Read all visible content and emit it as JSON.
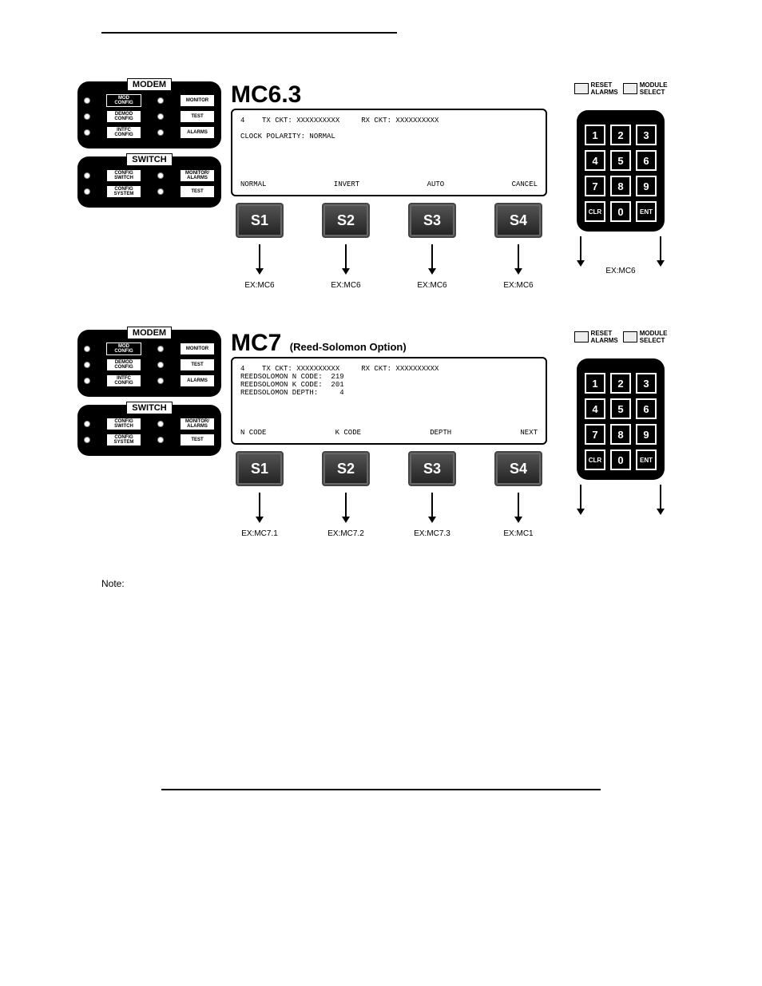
{
  "colors": {
    "bg": "#ffffff",
    "ink": "#000000",
    "panel_bg": "#000000",
    "panel_fg": "#ffffff",
    "lcd_border": "#000000"
  },
  "d1": {
    "title": "MC6.3",
    "subtitle": "",
    "lcd_top": "4    TX CKT: XXXXXXXXXX     RX CKT: XXXXXXXXXX\n\nCLOCK POLARITY: NORMAL",
    "lcd_bottom": [
      "NORMAL",
      "INVERT",
      "AUTO",
      "CANCEL"
    ],
    "soft": [
      "S1",
      "S2",
      "S3",
      "S4"
    ],
    "ex": [
      "EX:MC6",
      "EX:MC6",
      "EX:MC6",
      "EX:MC6"
    ],
    "kp_ex": "EX:MC6",
    "top_btns": [
      "RESET\nALARMS",
      "MODULE\nSELECT"
    ],
    "keypad": [
      "1",
      "2",
      "3",
      "4",
      "5",
      "6",
      "7",
      "8",
      "9",
      "CLR",
      "0",
      "ENT"
    ],
    "modem_label": "MODEM",
    "switch_label": "SWITCH",
    "modem_rows": [
      [
        "MOD\nCONFIG",
        "MONITOR"
      ],
      [
        "DEMOD\nCONFIG",
        "TEST"
      ],
      [
        "INTFC\nCONFIG",
        "ALARMS"
      ]
    ],
    "switch_rows": [
      [
        "CONFIG\nSWITCH",
        "MONITOR/\nALARMS"
      ],
      [
        "CONFIG\nSYSTEM",
        "TEST"
      ]
    ]
  },
  "d2": {
    "title": "MC7",
    "subtitle": "(Reed-Solomon Option)",
    "lcd_top": "4    TX CKT: XXXXXXXXXX     RX CKT: XXXXXXXXXX\nREEDSOLOMON N CODE:  219\nREEDSOLOMON K CODE:  201\nREEDSOLOMON DEPTH:     4",
    "lcd_bottom": [
      "N CODE",
      "K CODE",
      "DEPTH",
      "NEXT"
    ],
    "soft": [
      "S1",
      "S2",
      "S3",
      "S4"
    ],
    "ex": [
      "EX:MC7.1",
      "EX:MC7.2",
      "EX:MC7.3",
      "EX:MC1"
    ],
    "kp_ex": "",
    "top_btns": [
      "RESET\nALARMS",
      "MODULE\nSELECT"
    ],
    "keypad": [
      "1",
      "2",
      "3",
      "4",
      "5",
      "6",
      "7",
      "8",
      "9",
      "CLR",
      "0",
      "ENT"
    ],
    "modem_label": "MODEM",
    "switch_label": "SWITCH",
    "modem_rows": [
      [
        "MOD\nCONFIG",
        "MONITOR"
      ],
      [
        "DEMOD\nCONFIG",
        "TEST"
      ],
      [
        "INTFC\nCONFIG",
        "ALARMS"
      ]
    ],
    "switch_rows": [
      [
        "CONFIG\nSWITCH",
        "MONITOR/\nALARMS"
      ],
      [
        "CONFIG\nSYSTEM",
        "TEST"
      ]
    ]
  },
  "note_label": "Note:"
}
